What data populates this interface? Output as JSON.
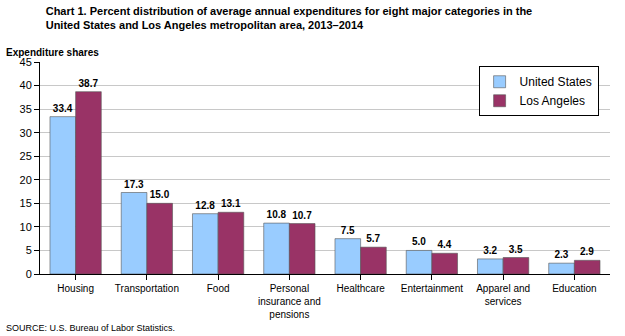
{
  "chart_data": {
    "type": "bar",
    "title": "Chart 1. Percent distribution of average annual expenditures for eight major categories in the United States and Los Angeles metropolitan area, 2013–2014",
    "y_label": "Expenditure shares",
    "source": "SOURCE: U.S. Bureau of Labor Statistics.",
    "categories": [
      "Housing",
      "Transportation",
      "Food",
      "Personal insurance and pensions",
      "Healthcare",
      "Entertainment",
      "Apparel and services",
      "Education"
    ],
    "series": [
      {
        "name": "United States",
        "color": "#99ccff",
        "values": [
          33.4,
          17.3,
          12.8,
          10.8,
          7.5,
          5.0,
          3.2,
          2.3
        ],
        "value_labels": [
          "33.4",
          "17.3",
          "12.8",
          "10.8",
          "7.5",
          "5.0",
          "3.2",
          "2.3"
        ]
      },
      {
        "name": "Los Angeles",
        "color": "#993366",
        "values": [
          38.7,
          15.0,
          13.1,
          10.7,
          5.7,
          4.4,
          3.5,
          2.9
        ],
        "value_labels": [
          "38.7",
          "15.0",
          "13.1",
          "10.7",
          "5.7",
          "4.4",
          "3.5",
          "2.9"
        ]
      }
    ],
    "ylim": [
      0,
      45
    ],
    "yticks": [
      0,
      5,
      10,
      15,
      20,
      25,
      30,
      35,
      40,
      45
    ],
    "grid": true,
    "legend": "top right",
    "data_labels": true
  }
}
